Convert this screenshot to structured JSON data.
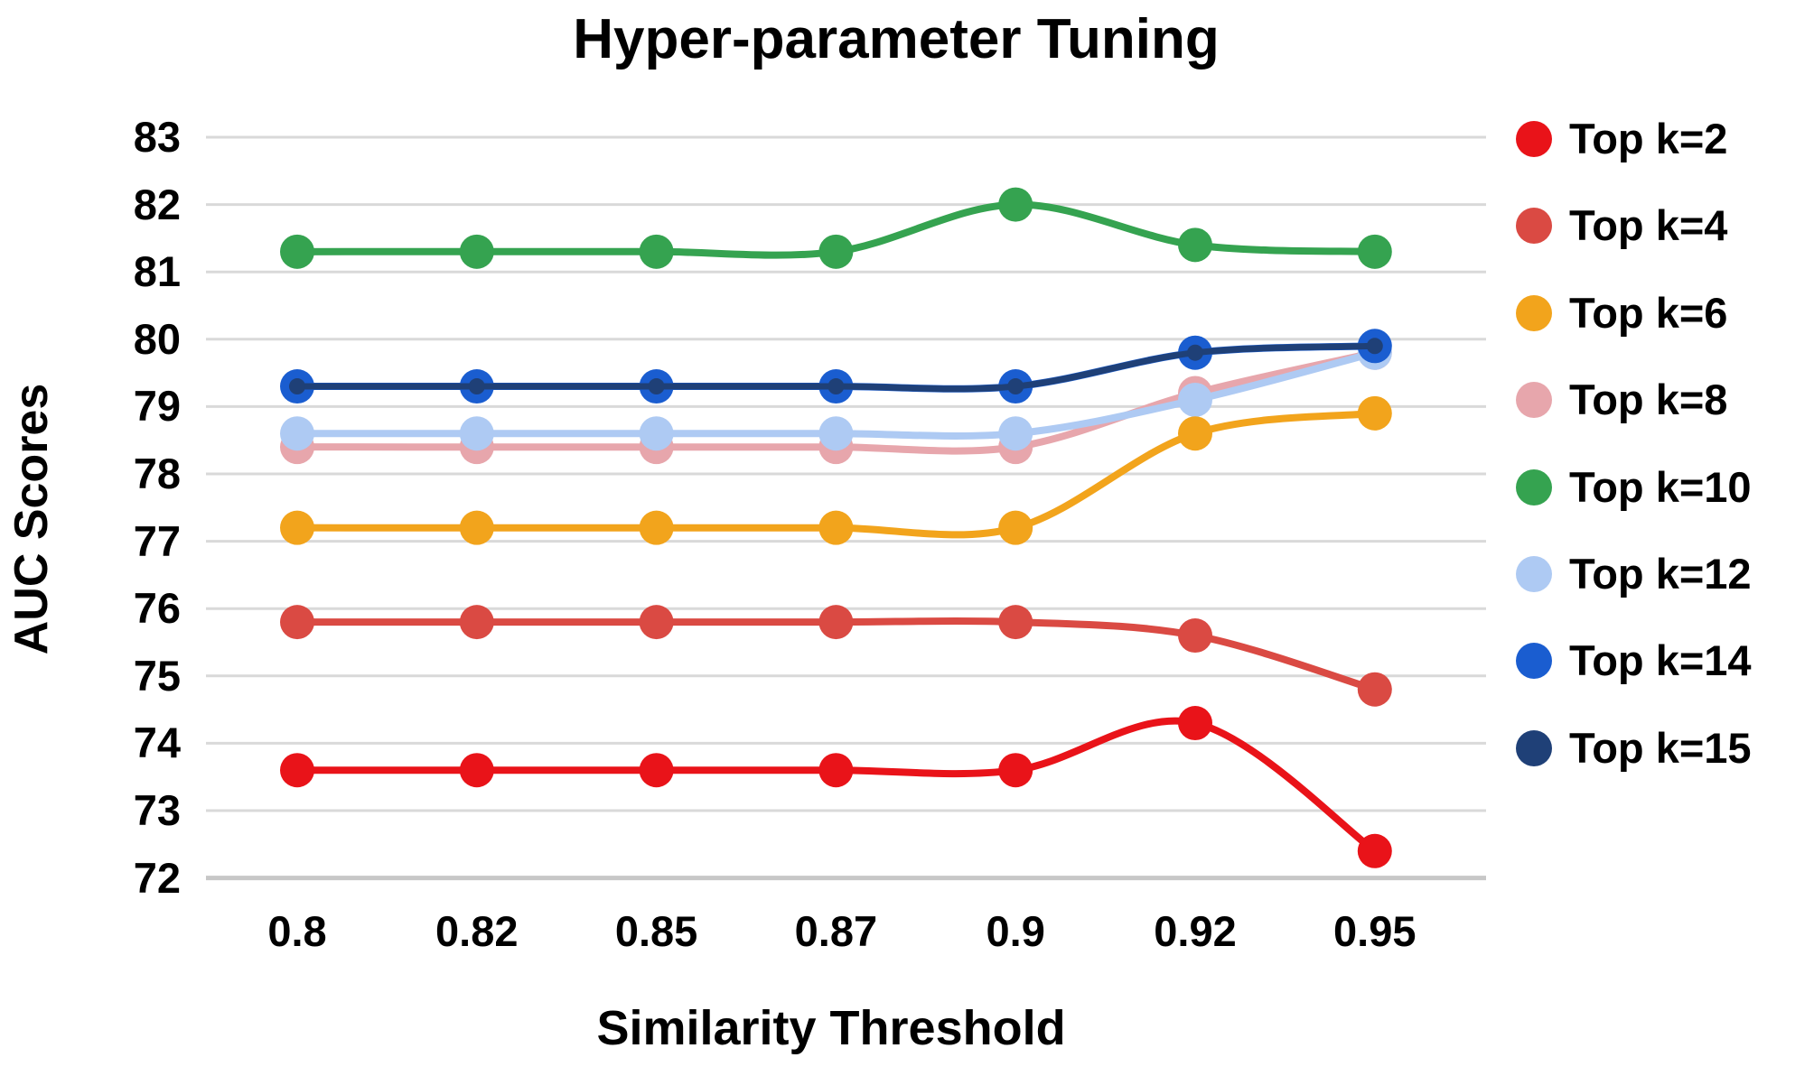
{
  "chart_data": {
    "type": "line",
    "title": "Hyper-parameter Tuning",
    "xlabel": "Similarity Threshold",
    "ylabel": "AUC Scores",
    "categories": [
      "0.8",
      "0.82",
      "0.85",
      "0.87",
      "0.9",
      "0.92",
      "0.95"
    ],
    "x_values": [
      0.8,
      0.82,
      0.85,
      0.87,
      0.9,
      0.92,
      0.95
    ],
    "y_ticks": [
      72,
      73,
      74,
      75,
      76,
      77,
      78,
      79,
      80,
      81,
      82,
      83
    ],
    "ylim": [
      72,
      83
    ],
    "grid": "horizontal",
    "line_style": "smooth",
    "legend_position": "right",
    "series": [
      {
        "name": "Top k=2",
        "color": "#e91319",
        "values": [
          73.6,
          73.6,
          73.6,
          73.6,
          73.6,
          74.3,
          72.4
        ],
        "marker_radius": 19,
        "line_width": 8
      },
      {
        "name": "Top k=4",
        "color": "#da4a43",
        "values": [
          75.8,
          75.8,
          75.8,
          75.8,
          75.8,
          75.6,
          74.8
        ],
        "marker_radius": 19,
        "line_width": 8
      },
      {
        "name": "Top k=6",
        "color": "#f2a41c",
        "values": [
          77.2,
          77.2,
          77.2,
          77.2,
          77.2,
          78.6,
          78.9
        ],
        "marker_radius": 19,
        "line_width": 8
      },
      {
        "name": "Top k=8",
        "color": "#e7a6ac",
        "values": [
          78.4,
          78.4,
          78.4,
          78.4,
          78.4,
          79.2,
          79.8
        ],
        "marker_radius": 19,
        "line_width": 8
      },
      {
        "name": "Top k=10",
        "color": "#35a350",
        "values": [
          81.3,
          81.3,
          81.3,
          81.3,
          82.0,
          81.4,
          81.3
        ],
        "marker_radius": 19,
        "line_width": 8
      },
      {
        "name": "Top k=12",
        "color": "#aecaf3",
        "values": [
          78.6,
          78.6,
          78.6,
          78.6,
          78.6,
          79.1,
          79.8
        ],
        "marker_radius": 19,
        "line_width": 8
      },
      {
        "name": "Top k=14",
        "color": "#1a5dd0",
        "values": [
          79.3,
          79.3,
          79.3,
          79.3,
          79.3,
          79.8,
          79.9
        ],
        "marker_radius": 19,
        "line_width": 8
      },
      {
        "name": "Top k=15",
        "color": "#1f4077",
        "values": [
          79.3,
          79.3,
          79.3,
          79.3,
          79.3,
          79.8,
          79.9
        ],
        "marker_radius": 9,
        "line_width": 7
      }
    ],
    "draw_order": [
      "Top k=8",
      "Top k=12",
      "Top k=6",
      "Top k=4",
      "Top k=2",
      "Top k=10",
      "Top k=14",
      "Top k=15"
    ],
    "gridline_color": "#d9d9d9",
    "baseline_color": "#c7c7c7",
    "background_color": "#ffffff"
  }
}
